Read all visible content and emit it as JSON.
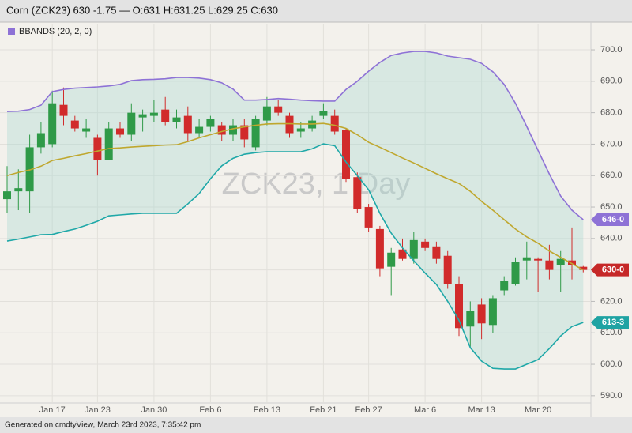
{
  "chart_data": {
    "type": "candlestick",
    "header": "Corn (ZCK23) 630 -1.75 — O:631 H:631.25 L:629.25 C:630",
    "watermark": "ZCK23, 1 Day",
    "footer": "Generated on cmdtyView, March 23rd 2023, 7:35:42 pm",
    "categories": [
      null,
      null,
      null,
      null,
      "Jan 17",
      null,
      null,
      null,
      "Jan 23",
      null,
      null,
      null,
      null,
      "Jan 30",
      null,
      null,
      null,
      null,
      "Feb 6",
      null,
      null,
      null,
      null,
      "Feb 13",
      null,
      null,
      null,
      null,
      "Feb 21",
      null,
      null,
      null,
      "Feb 27",
      null,
      null,
      null,
      null,
      "Mar 6",
      null,
      null,
      null,
      null,
      "Mar 13",
      null,
      null,
      null,
      null,
      "Mar 20",
      null,
      null,
      null,
      null
    ],
    "open": [
      652.5,
      655,
      655,
      669,
      670,
      682.5,
      677.5,
      674,
      672,
      665,
      675,
      673,
      678.5,
      679,
      681,
      677,
      679,
      673.5,
      675.5,
      676,
      673,
      676,
      669,
      677.5,
      682,
      679,
      674,
      675,
      679,
      679,
      674.5,
      659.5,
      650,
      643,
      631,
      636.5,
      633.5,
      639,
      637.5,
      634.5,
      625.5,
      612,
      619,
      612.5,
      623.5,
      625.5,
      633,
      633.5,
      633,
      631.5,
      633,
      631
    ],
    "high": [
      663,
      662,
      673,
      677,
      687,
      688,
      679,
      678,
      673,
      677,
      677,
      683,
      681,
      684,
      685,
      681,
      682,
      678,
      679,
      677,
      678,
      678,
      679,
      685,
      684,
      680,
      677,
      679,
      683,
      681,
      675,
      661,
      651,
      644,
      637,
      640,
      642,
      640,
      639,
      636,
      628,
      620,
      621,
      622,
      628,
      634,
      639,
      634,
      638,
      636,
      643.5,
      631.25
    ],
    "low": [
      648,
      649,
      648,
      667,
      669,
      676,
      674,
      672,
      660,
      665,
      672,
      671,
      674,
      677,
      676,
      675,
      671,
      672,
      674,
      671,
      671,
      669,
      668,
      676,
      679,
      672,
      672,
      674,
      678,
      673,
      658,
      648,
      642,
      628,
      622,
      633,
      632,
      636,
      632,
      624,
      609,
      605,
      608,
      610,
      622,
      625,
      627,
      623,
      627,
      623,
      627,
      629.25
    ],
    "close": [
      655,
      656,
      669,
      673.5,
      683,
      679,
      675,
      675,
      665,
      675,
      673,
      680,
      679.5,
      680,
      677,
      678.5,
      673.5,
      675.5,
      678,
      673,
      676,
      671.5,
      678,
      682,
      680,
      673.5,
      675,
      677.5,
      680.5,
      674,
      659,
      649.5,
      643.5,
      630.5,
      635.5,
      633.5,
      639.5,
      637,
      633.5,
      625.5,
      611.5,
      617,
      613,
      621,
      626.5,
      632.5,
      634,
      633,
      630,
      633.5,
      631.5,
      630
    ],
    "up_color": "#2f9a48",
    "down_color": "#d12b2b",
    "bands": {
      "name": "BBANDS (20, 2, 0)",
      "legend_color": "#8e72d6",
      "upper_color": "#8e72d6",
      "middle_color": "#bfa72e",
      "lower_color": "#1fa8a8",
      "upper": [
        680.4,
        680.5,
        681,
        682.4,
        686.7,
        687.4,
        687.8,
        688,
        688.2,
        688.5,
        689,
        690.2,
        690.5,
        690.6,
        690.8,
        691.2,
        691.2,
        691,
        690.5,
        689.5,
        687.5,
        684,
        684,
        684.2,
        684.5,
        684.3,
        684,
        683.8,
        683.7,
        683.7,
        687.4,
        690,
        693.2,
        696,
        698.2,
        699,
        699.5,
        699.5,
        699,
        698,
        697.5,
        697,
        695.7,
        693,
        689,
        683,
        675.6,
        668,
        660.5,
        653.5,
        649,
        646
      ],
      "middle": [
        660,
        661,
        661.8,
        663,
        664.8,
        665.5,
        666.3,
        667,
        667.8,
        668.6,
        668.8,
        669.1,
        669.3,
        669.5,
        669.7,
        669.8,
        670.8,
        672,
        673,
        674,
        674.9,
        675.5,
        676,
        676.4,
        676.5,
        676.5,
        676.4,
        676.4,
        676.6,
        676,
        675,
        673,
        670.6,
        669,
        667.3,
        665.6,
        664,
        662.3,
        660.6,
        659,
        657.5,
        655,
        651.8,
        649,
        646,
        643,
        640.5,
        638.5,
        636,
        634,
        632,
        630
      ],
      "lower": [
        639.2,
        639.8,
        640.5,
        641.2,
        641.3,
        642.2,
        643,
        644.2,
        645.5,
        647.2,
        647.5,
        647.8,
        648,
        648,
        648,
        648,
        651,
        654.3,
        659,
        663.1,
        665.5,
        666.8,
        667.3,
        667.6,
        667.6,
        667.6,
        667.6,
        668.5,
        670.1,
        669.5,
        664.3,
        660,
        655.5,
        648,
        641.7,
        637,
        632.9,
        629,
        625.4,
        620,
        614,
        605.3,
        601,
        598.7,
        598.5,
        598.5,
        600,
        601.5,
        605,
        609,
        612,
        613.3
      ]
    },
    "price_tags": [
      {
        "value": 646,
        "label": "646-0",
        "color": "#8e72d6"
      },
      {
        "value": 630,
        "label": "630-0",
        "color": "#c62828"
      },
      {
        "value": 613.3,
        "label": "613-3",
        "color": "#1fa3a3"
      }
    ],
    "ylim": [
      587.7,
      708.3
    ],
    "yticks": [
      {
        "value": 590,
        "label": "590.0"
      },
      {
        "value": 600,
        "label": "600.0"
      },
      {
        "value": 610,
        "label": "610.0"
      },
      {
        "value": 620,
        "label": "620.0"
      },
      {
        "value": 630,
        "label": "630.0"
      },
      {
        "value": 640,
        "label": "640.0"
      },
      {
        "value": 650,
        "label": "650.0"
      },
      {
        "value": 660,
        "label": "660.0"
      },
      {
        "value": 670,
        "label": "670.0"
      },
      {
        "value": 680,
        "label": "680.0"
      },
      {
        "value": 690,
        "label": "690.0"
      },
      {
        "value": 700,
        "label": "700.0"
      }
    ],
    "grid": true
  }
}
